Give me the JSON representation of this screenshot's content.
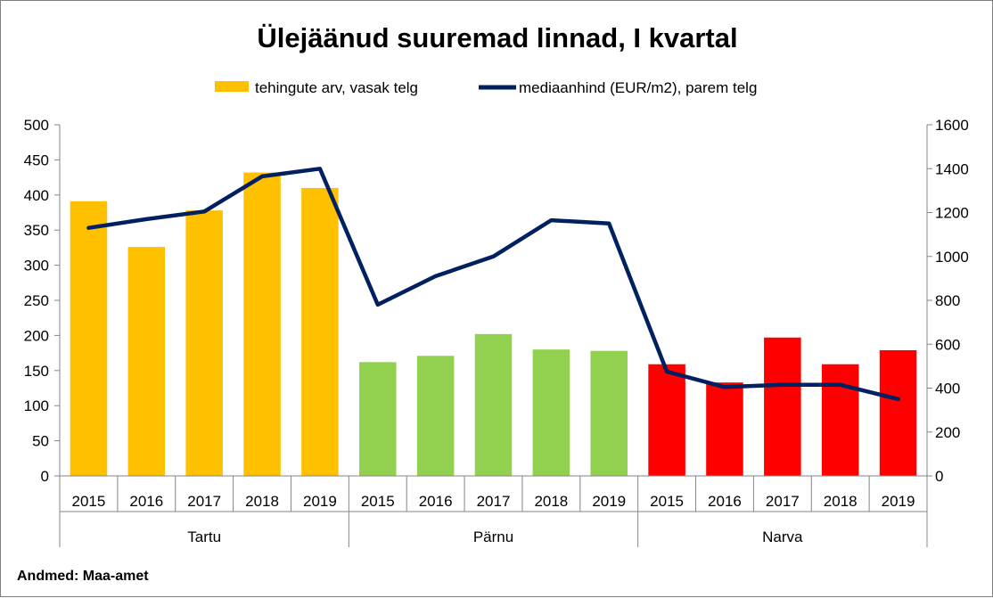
{
  "chart_data": {
    "type": "bar",
    "title": "Ülejäänud suuremad linnad, I kvartal",
    "source": "Andmed: Maa-amet",
    "groups": [
      {
        "name": "Tartu",
        "color": "#FFC000"
      },
      {
        "name": "Pärnu",
        "color": "#92D050"
      },
      {
        "name": "Narva",
        "color": "#FF0000"
      }
    ],
    "years": [
      "2015",
      "2016",
      "2017",
      "2018",
      "2019"
    ],
    "series": [
      {
        "name": "tehingute arv, vasak telg",
        "axis": "left",
        "chart": "bar",
        "color": "#FFC000",
        "values": [
          391,
          326,
          378,
          432,
          410,
          162,
          171,
          202,
          180,
          178,
          159,
          133,
          197,
          159,
          179
        ]
      },
      {
        "name": "mediaanhind (EUR/m2), parem telg",
        "axis": "right",
        "chart": "line",
        "color": "#002060",
        "values": [
          1130,
          1170,
          1205,
          1365,
          1400,
          780,
          910,
          1000,
          1165,
          1150,
          475,
          405,
          415,
          415,
          350
        ]
      }
    ],
    "left_axis": {
      "min": 0,
      "max": 500,
      "ticks": [
        "0",
        "50",
        "100",
        "150",
        "200",
        "250",
        "300",
        "350",
        "400",
        "450",
        "500"
      ]
    },
    "right_axis": {
      "min": 0,
      "max": 1600,
      "ticks": [
        "0",
        "200",
        "400",
        "600",
        "800",
        "1000",
        "1200",
        "1400",
        "1600"
      ]
    },
    "legend_position": "top",
    "grid": false
  }
}
